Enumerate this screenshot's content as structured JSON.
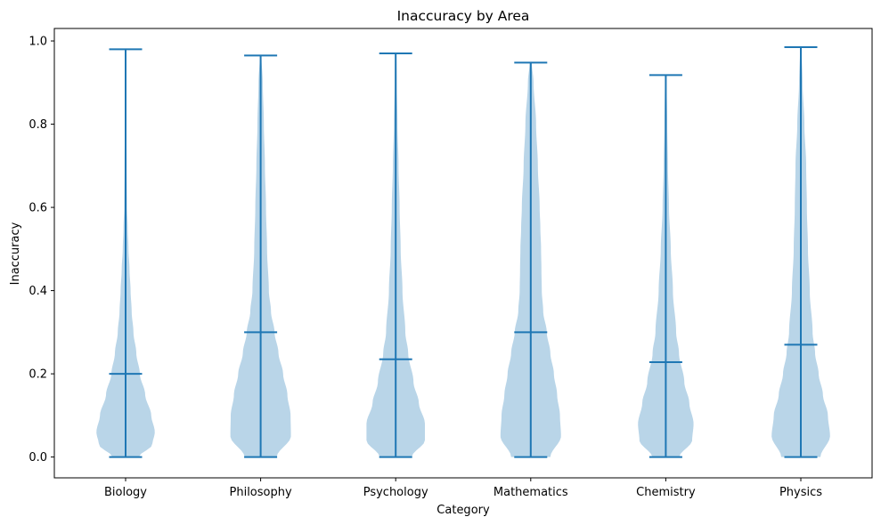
{
  "chart_data": {
    "type": "violin",
    "title": "Inaccuracy by Area",
    "xlabel": "Category",
    "ylabel": "Inaccuracy",
    "ylim": [
      -0.05,
      1.03
    ],
    "yticks": [
      0.0,
      0.2,
      0.4,
      0.6,
      0.8,
      1.0
    ],
    "ytick_labels": [
      "0.0",
      "0.2",
      "0.4",
      "0.6",
      "0.8",
      "1.0"
    ],
    "grid": false,
    "legend": "none",
    "colors": {
      "body": "#b9d5e8",
      "line": "#1f77b4"
    },
    "categories": [
      "Biology",
      "Philosophy",
      "Psychology",
      "Mathematics",
      "Chemistry",
      "Physics"
    ],
    "series": [
      {
        "category": "Biology",
        "min": 0.0,
        "median": 0.2,
        "max": 0.98,
        "density": [
          [
            0.0,
            0.37
          ],
          [
            0.03,
            0.75
          ],
          [
            0.06,
            0.82
          ],
          [
            0.1,
            0.72
          ],
          [
            0.15,
            0.55
          ],
          [
            0.2,
            0.4
          ],
          [
            0.25,
            0.3
          ],
          [
            0.3,
            0.22
          ],
          [
            0.35,
            0.17
          ],
          [
            0.4,
            0.14
          ],
          [
            0.45,
            0.11
          ],
          [
            0.5,
            0.08
          ],
          [
            0.55,
            0.06
          ],
          [
            0.6,
            0.04
          ],
          [
            0.7,
            0.03
          ],
          [
            0.8,
            0.02
          ],
          [
            0.9,
            0.01
          ],
          [
            0.98,
            0.01
          ]
        ]
      },
      {
        "category": "Philosophy",
        "min": 0.0,
        "median": 0.3,
        "max": 0.965,
        "density": [
          [
            0.0,
            0.45
          ],
          [
            0.05,
            0.85
          ],
          [
            0.1,
            0.84
          ],
          [
            0.15,
            0.75
          ],
          [
            0.2,
            0.63
          ],
          [
            0.25,
            0.5
          ],
          [
            0.3,
            0.39
          ],
          [
            0.35,
            0.29
          ],
          [
            0.4,
            0.23
          ],
          [
            0.5,
            0.18
          ],
          [
            0.6,
            0.15
          ],
          [
            0.7,
            0.12
          ],
          [
            0.8,
            0.09
          ],
          [
            0.9,
            0.06
          ],
          [
            0.965,
            0.02
          ]
        ]
      },
      {
        "category": "Psychology",
        "min": 0.0,
        "median": 0.235,
        "max": 0.97,
        "density": [
          [
            0.0,
            0.45
          ],
          [
            0.04,
            0.82
          ],
          [
            0.08,
            0.82
          ],
          [
            0.13,
            0.65
          ],
          [
            0.18,
            0.5
          ],
          [
            0.25,
            0.35
          ],
          [
            0.3,
            0.27
          ],
          [
            0.4,
            0.19
          ],
          [
            0.5,
            0.14
          ],
          [
            0.6,
            0.11
          ],
          [
            0.7,
            0.08
          ],
          [
            0.8,
            0.05
          ],
          [
            0.9,
            0.03
          ],
          [
            0.97,
            0.02
          ]
        ]
      },
      {
        "category": "Mathematics",
        "min": 0.0,
        "median": 0.3,
        "max": 0.948,
        "density": [
          [
            0.0,
            0.55
          ],
          [
            0.05,
            0.85
          ],
          [
            0.1,
            0.82
          ],
          [
            0.15,
            0.74
          ],
          [
            0.2,
            0.65
          ],
          [
            0.25,
            0.55
          ],
          [
            0.3,
            0.45
          ],
          [
            0.35,
            0.35
          ],
          [
            0.4,
            0.31
          ],
          [
            0.45,
            0.3
          ],
          [
            0.5,
            0.29
          ],
          [
            0.55,
            0.27
          ],
          [
            0.6,
            0.25
          ],
          [
            0.7,
            0.2
          ],
          [
            0.8,
            0.15
          ],
          [
            0.9,
            0.08
          ],
          [
            0.948,
            0.03
          ]
        ]
      },
      {
        "category": "Chemistry",
        "min": 0.0,
        "median": 0.228,
        "max": 0.918,
        "density": [
          [
            0.0,
            0.38
          ],
          [
            0.04,
            0.74
          ],
          [
            0.08,
            0.78
          ],
          [
            0.13,
            0.66
          ],
          [
            0.18,
            0.52
          ],
          [
            0.25,
            0.37
          ],
          [
            0.3,
            0.29
          ],
          [
            0.4,
            0.2
          ],
          [
            0.5,
            0.14
          ],
          [
            0.6,
            0.09
          ],
          [
            0.7,
            0.06
          ],
          [
            0.8,
            0.04
          ],
          [
            0.918,
            0.02
          ]
        ]
      },
      {
        "category": "Physics",
        "min": 0.0,
        "median": 0.27,
        "max": 0.985,
        "density": [
          [
            0.0,
            0.55
          ],
          [
            0.05,
            0.82
          ],
          [
            0.1,
            0.76
          ],
          [
            0.15,
            0.62
          ],
          [
            0.2,
            0.5
          ],
          [
            0.25,
            0.4
          ],
          [
            0.3,
            0.33
          ],
          [
            0.4,
            0.25
          ],
          [
            0.5,
            0.2
          ],
          [
            0.6,
            0.17
          ],
          [
            0.7,
            0.15
          ],
          [
            0.8,
            0.1
          ],
          [
            0.9,
            0.05
          ],
          [
            0.985,
            0.02
          ]
        ]
      }
    ]
  }
}
